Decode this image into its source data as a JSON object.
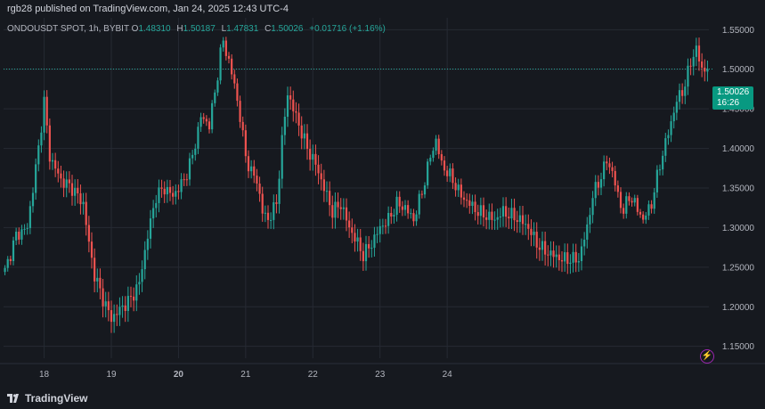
{
  "header": {
    "publisher_line": "rgb28 published on TradingView.com, Jan 24, 2025 12:43 UTC-4"
  },
  "legend": {
    "symbol": "ONDOUSDT SPOT, 1h, BYBIT",
    "o_label": "O",
    "o_value": "1.48310",
    "h_label": "H",
    "h_value": "1.50187",
    "l_label": "L",
    "l_value": "1.47831",
    "c_label": "C",
    "c_value": "1.50026",
    "change": "+0.01716 (+1.16%)"
  },
  "price_tag": {
    "price": "1.50026",
    "countdown": "16:26"
  },
  "footer": {
    "brand": "TradingView"
  },
  "colors": {
    "up": "#26a69a",
    "down": "#ef5350",
    "background": "#16191f",
    "grid": "#262a33",
    "tag": "#089981"
  },
  "chart_data": {
    "type": "candlestick",
    "title": "ONDOUSDT SPOT, 1h, BYBIT",
    "x_ticks": [
      "18",
      "19",
      "20",
      "21",
      "22",
      "23",
      "24"
    ],
    "y_ticks": [
      "1.55000",
      "1.50000",
      "1.45000",
      "1.40000",
      "1.35000",
      "1.30000",
      "1.25000",
      "1.20000",
      "1.15000"
    ],
    "ylim": [
      1.135,
      1.565
    ],
    "last_price": 1.50026,
    "grid": true,
    "keypoints": [
      [
        0,
        1.245
      ],
      [
        4,
        1.29
      ],
      [
        8,
        1.3
      ],
      [
        12,
        1.4
      ],
      [
        14,
        1.46
      ],
      [
        16,
        1.39
      ],
      [
        20,
        1.36
      ],
      [
        24,
        1.35
      ],
      [
        28,
        1.33
      ],
      [
        30,
        1.28
      ],
      [
        32,
        1.24
      ],
      [
        35,
        1.21
      ],
      [
        38,
        1.185
      ],
      [
        42,
        1.2
      ],
      [
        45,
        1.21
      ],
      [
        48,
        1.23
      ],
      [
        51,
        1.29
      ],
      [
        54,
        1.34
      ],
      [
        57,
        1.35
      ],
      [
        60,
        1.34
      ],
      [
        64,
        1.36
      ],
      [
        67,
        1.39
      ],
      [
        70,
        1.44
      ],
      [
        73,
        1.43
      ],
      [
        75,
        1.47
      ],
      [
        77,
        1.52
      ],
      [
        78,
        1.535
      ],
      [
        80,
        1.51
      ],
      [
        82,
        1.48
      ],
      [
        84,
        1.44
      ],
      [
        86,
        1.39
      ],
      [
        88,
        1.37
      ],
      [
        90,
        1.36
      ],
      [
        92,
        1.32
      ],
      [
        94,
        1.31
      ],
      [
        97,
        1.33
      ],
      [
        99,
        1.41
      ],
      [
        101,
        1.47
      ],
      [
        103,
        1.45
      ],
      [
        105,
        1.43
      ],
      [
        108,
        1.4
      ],
      [
        111,
        1.38
      ],
      [
        114,
        1.35
      ],
      [
        117,
        1.32
      ],
      [
        120,
        1.33
      ],
      [
        123,
        1.3
      ],
      [
        126,
        1.28
      ],
      [
        128,
        1.265
      ],
      [
        131,
        1.28
      ],
      [
        134,
        1.3
      ],
      [
        137,
        1.31
      ],
      [
        140,
        1.33
      ],
      [
        143,
        1.325
      ],
      [
        146,
        1.31
      ],
      [
        149,
        1.345
      ],
      [
        152,
        1.39
      ],
      [
        154,
        1.41
      ],
      [
        156,
        1.38
      ],
      [
        158,
        1.37
      ],
      [
        160,
        1.36
      ],
      [
        163,
        1.34
      ],
      [
        166,
        1.33
      ],
      [
        169,
        1.32
      ],
      [
        172,
        1.315
      ],
      [
        175,
        1.31
      ],
      [
        178,
        1.32
      ],
      [
        181,
        1.315
      ],
      [
        184,
        1.31
      ],
      [
        187,
        1.3
      ],
      [
        190,
        1.28
      ],
      [
        193,
        1.27
      ],
      [
        196,
        1.265
      ],
      [
        199,
        1.26
      ],
      [
        202,
        1.26
      ],
      [
        205,
        1.26
      ],
      [
        208,
        1.3
      ],
      [
        210,
        1.34
      ],
      [
        213,
        1.365
      ],
      [
        215,
        1.385
      ],
      [
        217,
        1.37
      ],
      [
        219,
        1.34
      ],
      [
        221,
        1.32
      ],
      [
        223,
        1.34
      ],
      [
        225,
        1.33
      ],
      [
        228,
        1.31
      ],
      [
        231,
        1.33
      ],
      [
        234,
        1.38
      ],
      [
        237,
        1.42
      ],
      [
        240,
        1.46
      ],
      [
        243,
        1.48
      ],
      [
        245,
        1.51
      ],
      [
        247,
        1.525
      ],
      [
        249,
        1.5
      ],
      [
        251,
        1.50026
      ]
    ]
  }
}
